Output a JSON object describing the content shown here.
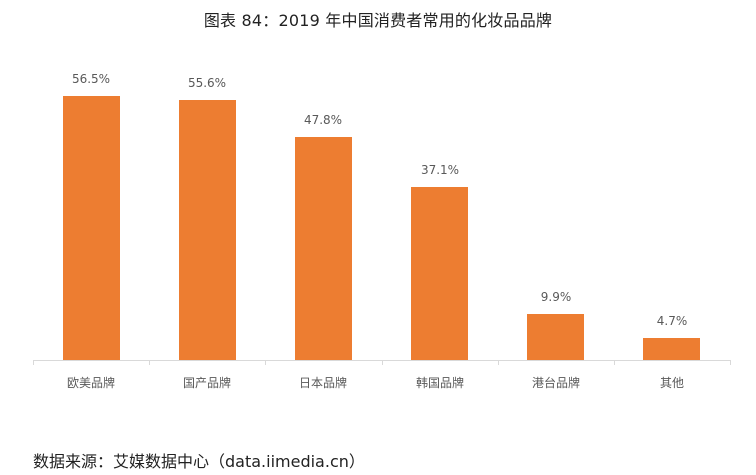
{
  "title": "图表 84：2019 年中国消费者常用的化妆品品牌",
  "source": "数据来源：艾媒数据中心（data.iimedia.cn）",
  "colors": {
    "bar": "#ed7d31",
    "axis": "#d9d9d9",
    "label": "#595959"
  },
  "chart_data": {
    "type": "bar",
    "title": "图表 84：2019 年中国消费者常用的化妆品品牌",
    "xlabel": "",
    "ylabel": "",
    "categories": [
      "欧美品牌",
      "国产品牌",
      "日本品牌",
      "韩国品牌",
      "港台品牌",
      "其他"
    ],
    "values": [
      56.5,
      55.6,
      47.8,
      37.1,
      9.9,
      4.7
    ],
    "value_labels": [
      "56.5%",
      "55.6%",
      "47.8%",
      "37.1%",
      "9.9%",
      "4.7%"
    ],
    "unit": "%",
    "ylim": [
      0,
      60
    ],
    "grid": false,
    "legend": null
  }
}
